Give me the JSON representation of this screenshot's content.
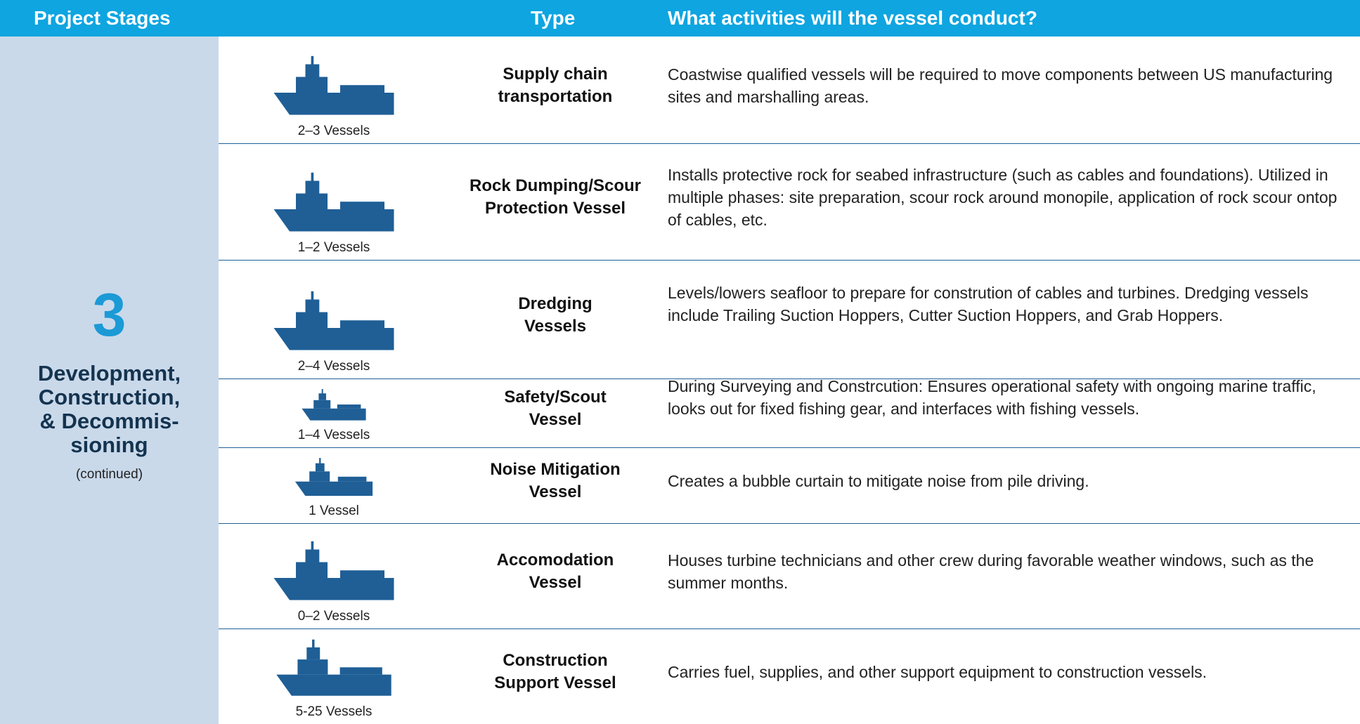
{
  "header": {
    "stage": "Project Stages",
    "type": "Type",
    "activities": "What activities will the vessel conduct?"
  },
  "stage": {
    "number": "3",
    "name_lines": [
      "Development,",
      "Construction,",
      "& Decommis-",
      "sioning"
    ],
    "note": "(continued)"
  },
  "rows": [
    {
      "count": "2–3 Vessels",
      "type_lines": [
        "Supply chain",
        "transportation"
      ],
      "description": "Coastwise qualified vessels will be required to move components between US manufacturing sites and marshalling areas."
    },
    {
      "count": "1–2 Vessels",
      "type_lines": [
        "Rock Dumping/Scour",
        "Protection Vessel"
      ],
      "description": "Installs protective rock for seabed infrastructure (such as cables and foundations). Utilized in multiple phases: site preparation, scour rock around monopile, application of rock scour ontop of cables, etc."
    },
    {
      "count": "2–4 Vessels",
      "type_lines": [
        "Dredging",
        "Vessels"
      ],
      "description": "Levels/lowers seafloor to prepare for constrution of cables and turbines. Dredging vessels include Trailing Suction Hoppers, Cutter Suction Hoppers, and Grab Hoppers."
    },
    {
      "count": "1–4 Vessels",
      "type_lines": [
        "Safety/Scout",
        "Vessel"
      ],
      "description": "During Surveying and Constrcution: Ensures operational safety with ongoing marine traffic, looks out for fixed fishing gear, and interfaces with fishing vessels."
    },
    {
      "count": "1 Vessel",
      "type_lines": [
        "Noise Mitigation",
        "Vessel"
      ],
      "description": "Creates a bubble curtain to mitigate noise from pile driving."
    },
    {
      "count": "0–2 Vessels",
      "type_lines": [
        "Accomodation",
        "Vessel"
      ],
      "description": "Houses turbine technicians and other crew during favorable weather windows, such as the summer months."
    },
    {
      "count": "5-25 Vessels",
      "type_lines": [
        "Construction",
        "Support Vessel"
      ],
      "description": "Carries fuel, supplies, and other support equipment to construction vessels."
    }
  ]
}
